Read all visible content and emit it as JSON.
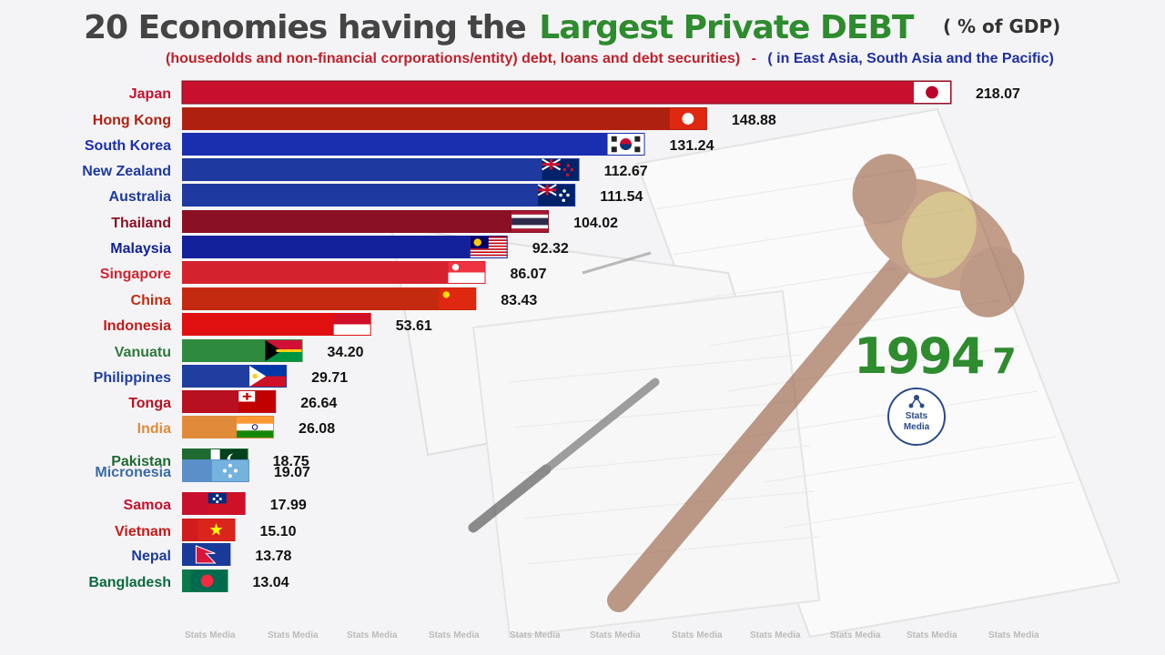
{
  "title": {
    "main": "20 Economies having the",
    "accent": "Largest Private DEBT",
    "unit": "( % of GDP)",
    "subtitle_left": "(housedolds and non-financial corporations/entity) debt, loans and debt securities)",
    "subtitle_sep": "-",
    "subtitle_right": "( in East Asia, South Asia and the Pacific)"
  },
  "year": {
    "main": "1994",
    "sub": "7"
  },
  "logo": {
    "line1": "Stats",
    "line2": "Media"
  },
  "watermark": "Stats Media",
  "colors": {
    "accent_green": "#2e8b2e",
    "title_gray": "#444444",
    "red_text": "#c0202a",
    "blue_text": "#1f2fa0"
  },
  "chart_data": {
    "type": "bar",
    "orientation": "horizontal",
    "title": "20 Economies having the Largest Private DEBT",
    "xlim": [
      0,
      218.07
    ],
    "series": [
      {
        "name": "Japan",
        "value": 218.07,
        "color": "#c8102e",
        "label_color": "#c8102e",
        "flag": "japan-flag"
      },
      {
        "name": "Hong Kong",
        "value": 148.88,
        "color": "#b0200f",
        "label_color": "#b0200f",
        "flag": "hong-kong-flag"
      },
      {
        "name": "South Korea",
        "value": 131.24,
        "color": "#1a2fb0",
        "label_color": "#1a2fb0",
        "flag": "south-korea-flag"
      },
      {
        "name": "New Zealand",
        "value": 112.67,
        "color": "#1e3aa0",
        "label_color": "#1e3aa0",
        "flag": "new-zealand-flag"
      },
      {
        "name": "Australia",
        "value": 111.54,
        "color": "#1e3aa0",
        "label_color": "#1e3aa0",
        "flag": "australia-flag"
      },
      {
        "name": "Thailand",
        "value": 104.02,
        "color": "#8a1025",
        "label_color": "#8a1025",
        "flag": "thailand-flag"
      },
      {
        "name": "Malaysia",
        "value": 92.32,
        "color": "#12219a",
        "label_color": "#12219a",
        "flag": "malaysia-flag"
      },
      {
        "name": "Singapore",
        "value": 86.07,
        "color": "#d4232e",
        "label_color": "#d4232e",
        "flag": "singapore-flag"
      },
      {
        "name": "China",
        "value": 83.43,
        "color": "#c42a10",
        "label_color": "#c42a10",
        "flag": "china-flag"
      },
      {
        "name": "Indonesia",
        "value": 53.61,
        "color": "#e01010",
        "label_color": "#c81818",
        "flag": "indonesia-flag"
      },
      {
        "name": "Vanuatu",
        "value": 34.2,
        "color": "#2e8b3e",
        "label_color": "#2e7a3a",
        "flag": "vanuatu-flag"
      },
      {
        "name": "Philippines",
        "value": 29.71,
        "color": "#1f3ea0",
        "label_color": "#1f3ea0",
        "flag": "philippines-flag"
      },
      {
        "name": "Tonga",
        "value": 26.64,
        "color": "#b81020",
        "label_color": "#b81020",
        "flag": "tonga-flag"
      },
      {
        "name": "India",
        "value": 26.08,
        "color": "#e08a3a",
        "label_color": "#e08a3a",
        "flag": "india-flag"
      },
      {
        "name": "Pakistan",
        "value": 18.75,
        "color": "#1e6a30",
        "label_color": "#1e6a30",
        "flag": "pakistan-flag"
      },
      {
        "name": "Micronesia",
        "value": 19.07,
        "color": "#5b8fc8",
        "label_color": "#3a6aa8",
        "flag": "micronesia-flag"
      },
      {
        "name": "Samoa",
        "value": 17.99,
        "color": "#c8102e",
        "label_color": "#c8102e",
        "flag": "samoa-flag"
      },
      {
        "name": "Vietnam",
        "value": 15.1,
        "color": "#d01c1c",
        "label_color": "#c81818",
        "flag": "vietnam-flag"
      },
      {
        "name": "Nepal",
        "value": 13.78,
        "color": "#1a3a9a",
        "label_color": "#1a3a9a",
        "flag": "nepal-flag"
      },
      {
        "name": "Bangladesh",
        "value": 13.04,
        "color": "#0a7a4a",
        "label_color": "#0a6a40",
        "flag": "bangladesh-flag"
      }
    ]
  }
}
